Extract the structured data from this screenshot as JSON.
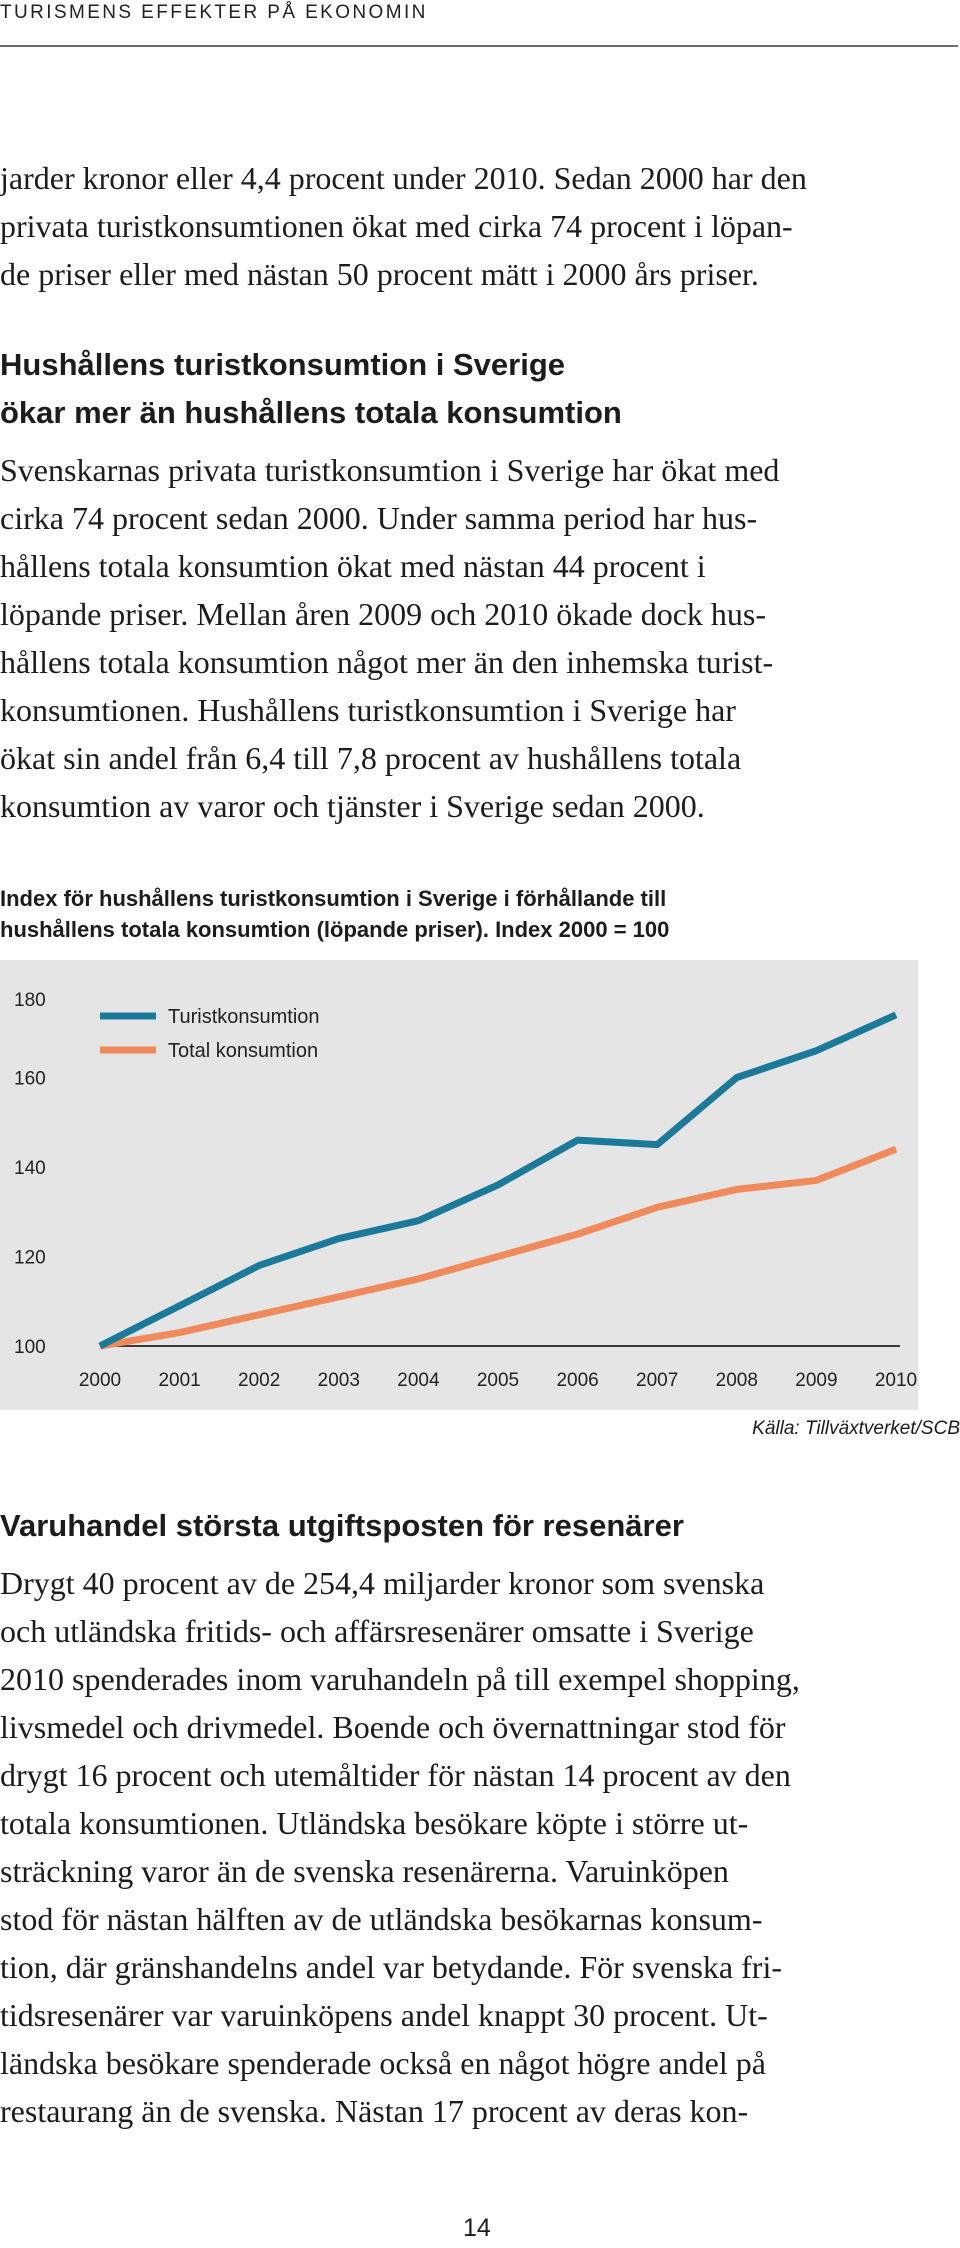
{
  "header": {
    "running_head": "TURISMENS EFFEKTER PÅ EKONOMIN"
  },
  "intro_paragraph": {
    "lines": [
      "jarder kronor eller 4,4 procent under 2010. Sedan 2000 har den",
      "privata turistkonsumtionen ökat med cirka 74 procent i löpan-",
      "de priser eller med nästan 50 procent mätt i 2000 års priser."
    ]
  },
  "section1": {
    "heading_lines": [
      "Hushållens turistkonsumtion i Sverige",
      "ökar mer än hushållens totala konsumtion"
    ],
    "body_lines": [
      "Svenskarnas privata turistkonsumtion i Sverige har ökat med",
      "cirka 74 procent sedan 2000. Under samma period har hus-",
      "hållens totala konsumtion ökat med nästan 44 procent i",
      "löpande priser. Mellan åren 2009 och 2010 ökade dock hus-",
      "hållens totala konsumtion något mer än den inhemska turist-",
      "konsumtionen. Hushållens turistkonsumtion i Sverige har",
      "ökat sin andel från 6,4 till 7,8 procent av hushållens totala",
      "konsumtion av varor och tjänster i Sverige sedan 2000."
    ]
  },
  "figure": {
    "caption_lines": [
      "Index för hushållens turistkonsumtion i Sverige i förhållande till",
      "hushållens totala konsumtion (löpande priser). Index 2000 = 100"
    ],
    "source": "Källa: Tillväxtverket/SCB"
  },
  "chart_data": {
    "type": "line",
    "title": "Index för hushållens turistkonsumtion i Sverige i förhållande till hushållens totala konsumtion (löpande priser). Index 2000 = 100",
    "xlabel": "",
    "ylabel": "",
    "x": [
      "2000",
      "2001",
      "2002",
      "2003",
      "2004",
      "2005",
      "2006",
      "2007",
      "2008",
      "2009",
      "2010"
    ],
    "ylim": [
      100,
      180
    ],
    "yticks": [
      100,
      120,
      140,
      160,
      180
    ],
    "grid": false,
    "legend_position": "top-left",
    "series": [
      {
        "name": "Turistkonsumtion",
        "color": "#1b7a99",
        "values": [
          100,
          109,
          118,
          124,
          128,
          136,
          146,
          145,
          160,
          166,
          174
        ]
      },
      {
        "name": "Total konsumtion",
        "color": "#f08a5a",
        "values": [
          100,
          103,
          107,
          111,
          115,
          120,
          125,
          131,
          135,
          137,
          144
        ]
      }
    ]
  },
  "section2": {
    "heading": "Varuhandel största utgiftsposten för resenärer",
    "body_lines": [
      "Drygt 40 procent av de 254,4 miljarder kronor som svenska",
      "och utländska fritids- och affärsresenärer omsatte i Sverige",
      "2010 spenderades inom varuhandeln på till exempel shopping,",
      "livsmedel och drivmedel. Boende och övernattningar stod för",
      "drygt 16 procent och utemåltider för nästan 14 procent av den",
      "totala konsumtionen. Utländska besökare köpte i större ut-",
      "sträckning varor än de svenska resenärerna. Varuinköpen",
      "stod för nästan hälften av de utländska besökarnas konsum-",
      "tion, där gränshandelns andel var betydande. För svenska fri-",
      "tidsresenärer var varuinköpens andel knappt 30 procent. Ut-",
      "ländska besökare spenderade också en något högre andel på",
      "restaurang än de svenska. Nästan 17 procent av deras kon-"
    ]
  },
  "footer": {
    "page_number": "14"
  }
}
